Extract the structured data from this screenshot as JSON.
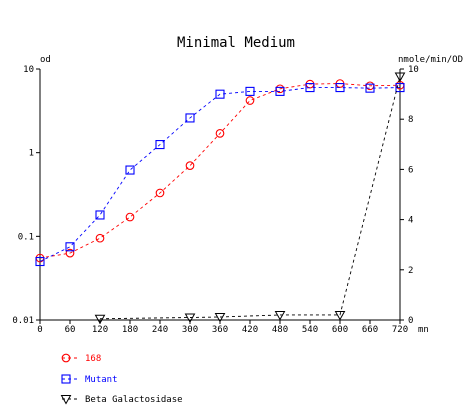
{
  "chart_data": {
    "type": "line",
    "title": "Minimal Medium",
    "xlabel": "mn",
    "ylabel_left": "od",
    "ylabel_right": "nmole/min/OD",
    "x_ticks": [
      0,
      60,
      120,
      180,
      240,
      300,
      360,
      420,
      480,
      540,
      600,
      660,
      720
    ],
    "xlim": [
      0,
      720
    ],
    "y_left": {
      "scale": "log",
      "lim": [
        0.01,
        10
      ],
      "ticks": [
        0.01,
        0.1,
        1,
        10
      ],
      "tick_labels": [
        "0.01",
        "0.1",
        "1",
        "10"
      ]
    },
    "y_right": {
      "scale": "linear",
      "lim": [
        0,
        10
      ],
      "ticks": [
        0,
        2,
        4,
        6,
        8,
        10
      ],
      "tick_labels": [
        "0",
        "2",
        "4",
        "6",
        "8",
        "10"
      ]
    },
    "grid": false,
    "legend_position": "bottom-left",
    "series": [
      {
        "name": "168",
        "axis": "left",
        "color": "#ff0000",
        "marker": "circle",
        "x": [
          0,
          60,
          120,
          180,
          240,
          300,
          360,
          420,
          480,
          540,
          600,
          660,
          720
        ],
        "y": [
          0.055,
          0.063,
          0.095,
          0.17,
          0.33,
          0.7,
          1.7,
          4.2,
          5.8,
          6.6,
          6.7,
          6.3,
          6.4
        ]
      },
      {
        "name": "Mutant",
        "axis": "left",
        "color": "#0000ff",
        "marker": "square",
        "x": [
          0,
          60,
          120,
          180,
          240,
          300,
          360,
          420,
          480,
          540,
          600,
          660,
          720
        ],
        "y": [
          0.05,
          0.075,
          0.18,
          0.62,
          1.25,
          2.6,
          5.0,
          5.4,
          5.4,
          6.0,
          6.0,
          5.9,
          6.0
        ]
      },
      {
        "name": "Beta Galactosidase",
        "axis": "right",
        "color": "#000000",
        "marker": "triangle-down",
        "x": [
          120,
          300,
          360,
          480,
          600,
          720
        ],
        "y": [
          0.05,
          0.1,
          0.12,
          0.2,
          0.2,
          9.7
        ]
      }
    ]
  }
}
